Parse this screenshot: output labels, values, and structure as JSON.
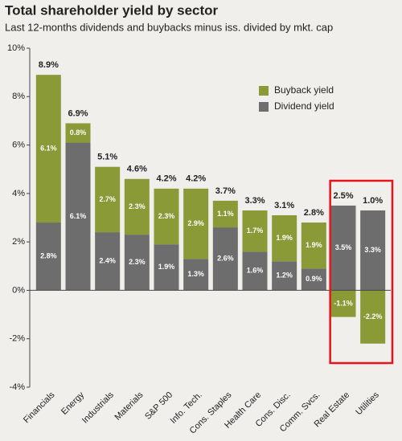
{
  "chart_data": {
    "type": "stacked_bar",
    "title": "Total shareholder yield by sector",
    "subtitle": "Last 12-months dividends and buybacks minus iss. divided by mkt. cap",
    "categories": [
      "Financials",
      "Energy",
      "Industrials",
      "Materials",
      "S&P 500",
      "Info. Tech.",
      "Cons. Staples",
      "Health Care",
      "Cons. Disc.",
      "Comm. Svcs.",
      "Real Estate",
      "Utilities"
    ],
    "series": [
      {
        "name": "Dividend yield",
        "color": "#6d6d6d",
        "values": [
          2.8,
          6.1,
          2.4,
          2.3,
          1.9,
          1.3,
          2.6,
          1.6,
          1.2,
          0.9,
          3.5,
          3.3
        ],
        "value_labels": [
          "2.8%",
          "6.1%",
          "2.4%",
          "2.3%",
          "1.9%",
          "1.3%",
          "2.6%",
          "1.6%",
          "1.2%",
          "0.9%",
          "3.5%",
          "3.3%"
        ]
      },
      {
        "name": "Buyback yield",
        "color": "#8a9a36",
        "values": [
          6.1,
          0.8,
          2.7,
          2.3,
          2.3,
          2.9,
          1.1,
          1.7,
          1.9,
          1.9,
          -1.1,
          -2.2
        ],
        "value_labels": [
          "6.1%",
          "0.8%",
          "2.7%",
          "2.3%",
          "2.3%",
          "2.9%",
          "1.1%",
          "1.7%",
          "1.9%",
          "1.9%",
          "-1.1%",
          "-2.2%"
        ]
      }
    ],
    "totals": {
      "values": [
        8.9,
        6.9,
        5.1,
        4.6,
        4.2,
        4.2,
        3.7,
        3.3,
        3.1,
        2.8,
        2.5,
        1.0
      ],
      "value_labels": [
        "8.9%",
        "6.9%",
        "5.1%",
        "4.6%",
        "4.2%",
        "4.2%",
        "3.7%",
        "3.3%",
        "3.1%",
        "2.8%",
        "2.5%",
        "1.0%"
      ]
    },
    "ylim": [
      -4,
      10
    ],
    "yticks": [
      {
        "value": -4,
        "label": "-4%"
      },
      {
        "value": -2,
        "label": "-2%"
      },
      {
        "value": 0,
        "label": "0%"
      },
      {
        "value": 2,
        "label": "2%"
      },
      {
        "value": 4,
        "label": "4%"
      },
      {
        "value": 6,
        "label": "6%"
      },
      {
        "value": 8,
        "label": "8%"
      },
      {
        "value": 10,
        "label": "10%"
      }
    ],
    "highlight_color": "#e8141c"
  }
}
